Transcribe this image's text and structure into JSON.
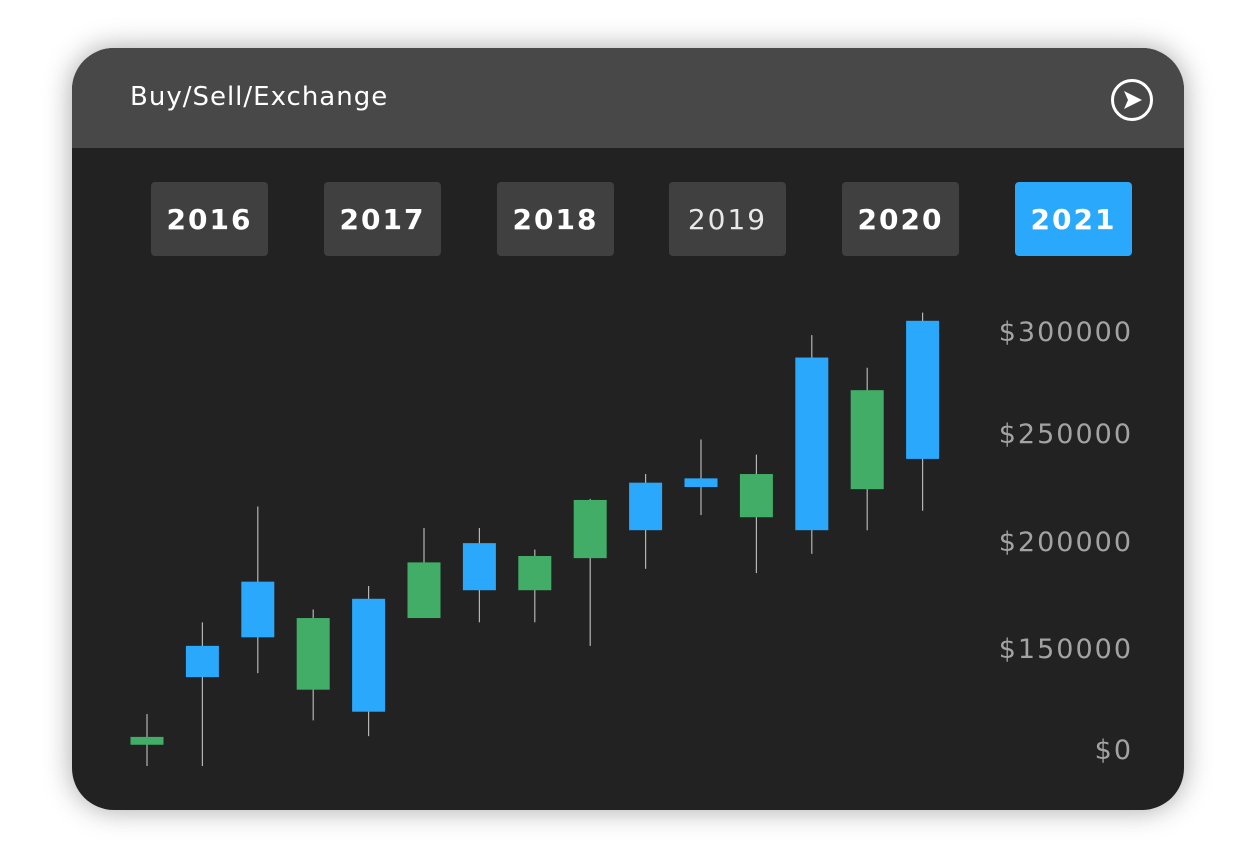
{
  "header": {
    "title": "Buy/Sell/Exchange",
    "action_icon": "navigation-arrow-circle-icon"
  },
  "years": [
    {
      "label": "2016",
      "style": "bold"
    },
    {
      "label": "2017",
      "style": "bold"
    },
    {
      "label": "2018",
      "style": "bold"
    },
    {
      "label": "2019",
      "style": "regular"
    },
    {
      "label": "2020",
      "style": "bold"
    },
    {
      "label": "2021",
      "style": "bold",
      "selected": true
    }
  ],
  "colors": {
    "accent": "#29a8fc",
    "up": "#42ad66",
    "down": "#29a8fc",
    "header": "#484848",
    "background": "#222222"
  },
  "chart_data": {
    "type": "candlestick",
    "title": "",
    "xlabel": "",
    "ylabel": "",
    "y_ticks": [
      {
        "value": 300000,
        "label": "$300000"
      },
      {
        "value": 250000,
        "label": "$250000"
      },
      {
        "value": 200000,
        "label": "$200000"
      },
      {
        "value": 150000,
        "label": "$150000"
      },
      {
        "value": 0,
        "label": "$0"
      }
    ],
    "y_axis_position": "right",
    "y_axis_note_broken_between": [
      0,
      150000
    ],
    "grid": false,
    "candles": [
      {
        "o": 27000,
        "h": 66000,
        "l": 0,
        "c": 37000,
        "color": "green"
      },
      {
        "o": 151000,
        "h": 162000,
        "l": 0,
        "c": 113000,
        "color": "blue"
      },
      {
        "o": 181000,
        "h": 216000,
        "l": 118000,
        "c": 155000,
        "color": "blue"
      },
      {
        "o": 97000,
        "h": 168000,
        "l": 58000,
        "c": 164000,
        "color": "green"
      },
      {
        "o": 173000,
        "h": 179000,
        "l": 38000,
        "c": 69000,
        "color": "blue"
      },
      {
        "o": 164000,
        "h": 206000,
        "l": 164000,
        "c": 190000,
        "color": "green"
      },
      {
        "o": 199000,
        "h": 206000,
        "l": 162000,
        "c": 177000,
        "color": "blue"
      },
      {
        "o": 177000,
        "h": 196000,
        "l": 162000,
        "c": 193000,
        "color": "green"
      },
      {
        "o": 192000,
        "h": 219500,
        "l": 151000,
        "c": 219000,
        "color": "green"
      },
      {
        "o": 227000,
        "h": 231000,
        "l": 187000,
        "c": 205000,
        "color": "blue"
      },
      {
        "o": 229000,
        "h": 247000,
        "l": 212000,
        "c": 225000,
        "color": "blue"
      },
      {
        "o": 211000,
        "h": 240000,
        "l": 185000,
        "c": 231000,
        "color": "green"
      },
      {
        "o": 287000,
        "h": 298000,
        "l": 194000,
        "c": 205000,
        "color": "blue"
      },
      {
        "o": 224000,
        "h": 282000,
        "l": 205000,
        "c": 271000,
        "color": "green"
      },
      {
        "o": 305000,
        "h": 309000,
        "l": 214000,
        "c": 238000,
        "color": "blue"
      }
    ]
  }
}
